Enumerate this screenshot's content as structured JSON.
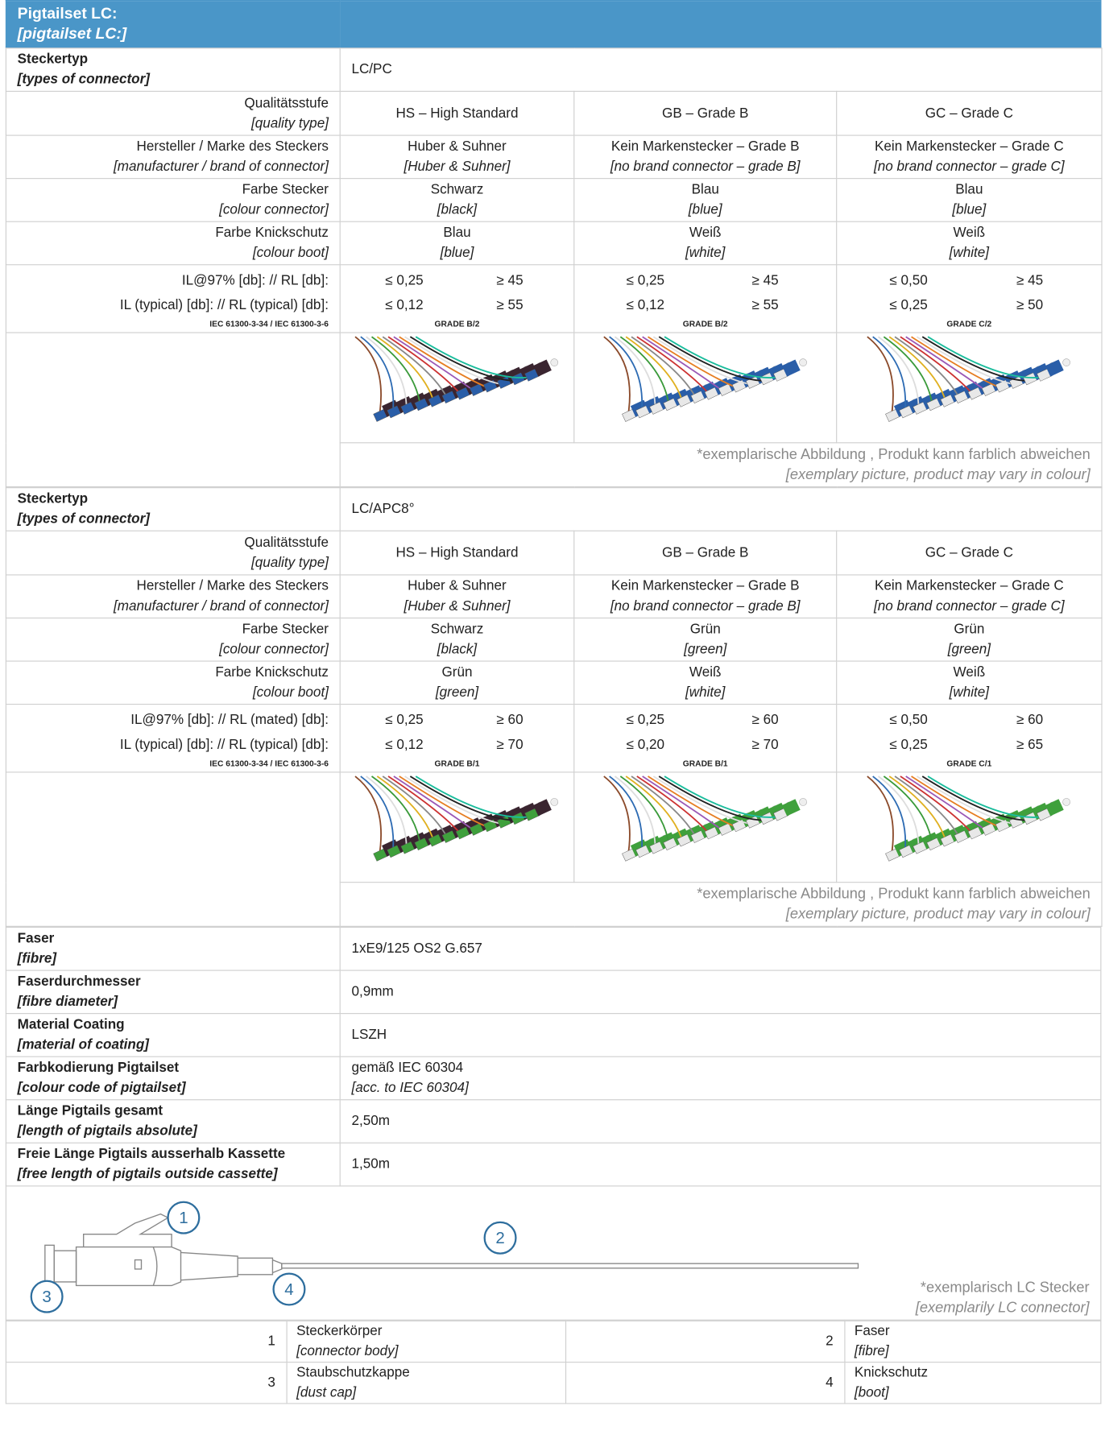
{
  "header": {
    "title": "Pigtailset LC:",
    "subtitle": "[pigtailset LC:]"
  },
  "sections": [
    {
      "label": "Steckertyp",
      "label_en": "[types of connector]",
      "value": "LC/PC",
      "rows": [
        {
          "label": "Qualitätsstufe",
          "label_en": "[quality type]",
          "cells": [
            {
              "text": "HS – High Standard"
            },
            {
              "text": "GB – Grade B"
            },
            {
              "text": "GC – Grade C"
            }
          ]
        },
        {
          "label": "Hersteller / Marke des Steckers",
          "label_en": "[manufacturer / brand of connector]",
          "cells": [
            {
              "text": "Huber & Suhner",
              "text_en": "[Huber & Suhner]"
            },
            {
              "text": "Kein Markenstecker – Grade B",
              "text_en": "[no brand connector – grade B]"
            },
            {
              "text": "Kein Markenstecker – Grade C",
              "text_en": "[no brand connector – grade C]"
            }
          ]
        },
        {
          "label": "Farbe Stecker",
          "label_en": "[colour connector]",
          "cells": [
            {
              "text": "Schwarz",
              "text_en": "[black]"
            },
            {
              "text": "Blau",
              "text_en": "[blue]"
            },
            {
              "text": "Blau",
              "text_en": "[blue]"
            }
          ]
        },
        {
          "label": "Farbe Knickschutz",
          "label_en": "[colour boot]",
          "cells": [
            {
              "text": "Blau",
              "text_en": "[blue]"
            },
            {
              "text": "Weiß",
              "text_en": "[white]"
            },
            {
              "text": "Weiß",
              "text_en": "[white]"
            }
          ]
        }
      ],
      "perf": {
        "labels": [
          "IL@97% [db]: // RL [db]:",
          "IL (typical) [db]: // RL (typical) [db]:"
        ],
        "standard": "IEC 61300-3-34 / IEC 61300-3-6",
        "cells": [
          {
            "values": [
              [
                "≤ 0,25",
                "≥ 45"
              ],
              [
                "≤ 0,12",
                "≥ 55"
              ]
            ],
            "grade": "GRADE B/2"
          },
          {
            "values": [
              [
                "≤ 0,25",
                "≥ 45"
              ],
              [
                "≤ 0,12",
                "≥ 55"
              ]
            ],
            "grade": "GRADE B/2"
          },
          {
            "values": [
              [
                "≤ 0,50",
                "≥ 45"
              ],
              [
                "≤ 0,25",
                "≥ 50"
              ]
            ],
            "grade": "GRADE C/2"
          }
        ]
      },
      "caption": "*exemplarische Abbildung , Produkt kann farblich abweichen",
      "caption_en": "[exemplary picture, product may vary in colour]"
    },
    {
      "label": "Steckertyp",
      "label_en": "[types of connector]",
      "value": "LC/APC8°",
      "rows": [
        {
          "label": "Qualitätsstufe",
          "label_en": "[quality type]",
          "cells": [
            {
              "text": "HS – High Standard"
            },
            {
              "text": "GB – Grade B"
            },
            {
              "text": "GC – Grade C"
            }
          ]
        },
        {
          "label": "Hersteller / Marke des Steckers",
          "label_en": "[manufacturer / brand of connector]",
          "cells": [
            {
              "text": "Huber & Suhner",
              "text_en": "[Huber & Suhner]"
            },
            {
              "text": "Kein Markenstecker – Grade B",
              "text_en": "[no brand connector – grade B]"
            },
            {
              "text": "Kein Markenstecker – Grade C",
              "text_en": "[no brand connector – grade C]"
            }
          ]
        },
        {
          "label": "Farbe Stecker",
          "label_en": "[colour connector]",
          "cells": [
            {
              "text": "Schwarz",
              "text_en": "[black]"
            },
            {
              "text": "Grün",
              "text_en": "[green]"
            },
            {
              "text": "Grün",
              "text_en": "[green]"
            }
          ]
        },
        {
          "label": "Farbe Knickschutz",
          "label_en": "[colour boot]",
          "cells": [
            {
              "text": "Grün",
              "text_en": "[green]"
            },
            {
              "text": "Weiß",
              "text_en": "[white]"
            },
            {
              "text": "Weiß",
              "text_en": "[white]"
            }
          ]
        }
      ],
      "perf": {
        "labels": [
          "IL@97% [db]: // RL (mated) [db]:",
          "IL (typical) [db]: // RL (typical) [db]:"
        ],
        "standard": "IEC 61300-3-34 / IEC 61300-3-6",
        "cells": [
          {
            "values": [
              [
                "≤ 0,25",
                "≥ 60"
              ],
              [
                "≤ 0,12",
                "≥ 70"
              ]
            ],
            "grade": "GRADE B/1"
          },
          {
            "values": [
              [
                "≤ 0,25",
                "≥ 60"
              ],
              [
                "≤ 0,20",
                "≥ 70"
              ]
            ],
            "grade": "GRADE B/1"
          },
          {
            "values": [
              [
                "≤ 0,50",
                "≥ 60"
              ],
              [
                "≤ 0,25",
                "≥ 65"
              ]
            ],
            "grade": "GRADE C/1"
          }
        ]
      },
      "caption": "*exemplarische Abbildung , Produkt kann farblich abweichen",
      "caption_en": "[exemplary picture, product may vary in colour]"
    }
  ],
  "specs": [
    {
      "label": "Faser",
      "label_en": "[fibre]",
      "value": "1xE9/125 OS2 G.657"
    },
    {
      "label": "Faserdurchmesser",
      "label_en": "[fibre diameter]",
      "value": "0,9mm"
    },
    {
      "label": "Material Coating",
      "label_en": "[material of coating]",
      "value": "LSZH"
    },
    {
      "label": "Farbkodierung Pigtailset",
      "label_en": "[colour code of pigtailset]",
      "value": "gemäß IEC 60304",
      "value_en": "[acc. to IEC 60304]"
    },
    {
      "label": "Länge Pigtails gesamt",
      "label_en": "[length of pigtails absolute]",
      "value": "2,50m"
    },
    {
      "label": "Freie Länge Pigtails ausserhalb Kassette",
      "label_en": "[free length of pigtails outside cassette]",
      "value": "1,50m"
    }
  ],
  "diagram": {
    "callouts": [
      "1",
      "2",
      "3",
      "4"
    ],
    "note": "*exemplarisch LC Stecker",
    "note_en": "[exemplarily LC connector]"
  },
  "legend": [
    [
      {
        "num": "1",
        "text": "Steckerkörper",
        "text_en": "[connector body]"
      },
      {
        "num": "2",
        "text": "Faser",
        "text_en": "[fibre]"
      }
    ],
    [
      {
        "num": "3",
        "text": "Staubschutzkappe",
        "text_en": "[dust cap]"
      },
      {
        "num": "4",
        "text": "Knickschutz",
        "text_en": "[boot]"
      }
    ]
  ]
}
